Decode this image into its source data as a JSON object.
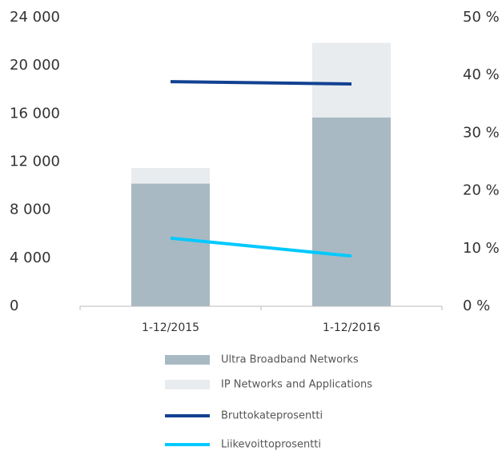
{
  "chart_data": {
    "type": "bar",
    "categories": [
      "1-12/2015",
      "1-12/2016"
    ],
    "series": [
      {
        "name": "Ultra Broadband Networks",
        "color": "#a8b9c3",
        "type": "bar",
        "values": [
          10200,
          15700
        ]
      },
      {
        "name": "IP Networks and Applications",
        "color": "#e8ecef",
        "type": "bar",
        "values": [
          1300,
          6200
        ]
      },
      {
        "name": "Bruttokateprosentti",
        "color": "#124191",
        "type": "line",
        "axis": "y2",
        "values": [
          38.9,
          38.5
        ]
      },
      {
        "name": "Liikevoittoprosentti",
        "color": "#00c9ff",
        "type": "line",
        "axis": "y2",
        "values": [
          11.8,
          8.7
        ]
      }
    ],
    "stacked": true,
    "ylim": [
      0,
      24000
    ],
    "yticks": [
      0,
      {
        "value": 4000,
        "label": "4 000"
      },
      {
        "value": 8000,
        "label": "8 000"
      },
      {
        "value": 12000,
        "label": "12 000"
      },
      {
        "value": 16000,
        "label": "16 000"
      },
      {
        "value": 20000,
        "label": "20 000"
      },
      {
        "value": 24000,
        "label": "24 000"
      }
    ],
    "y2lim": [
      0,
      50
    ],
    "y2ticks": [
      {
        "value": 0,
        "label": "0 %"
      },
      {
        "value": 10,
        "label": "10 %"
      },
      {
        "value": 20,
        "label": "20 %"
      },
      {
        "value": 30,
        "label": "30 %"
      },
      {
        "value": 40,
        "label": "40 %"
      },
      {
        "value": 50,
        "label": "50 %"
      }
    ],
    "grid": false,
    "legend": "bottom"
  }
}
